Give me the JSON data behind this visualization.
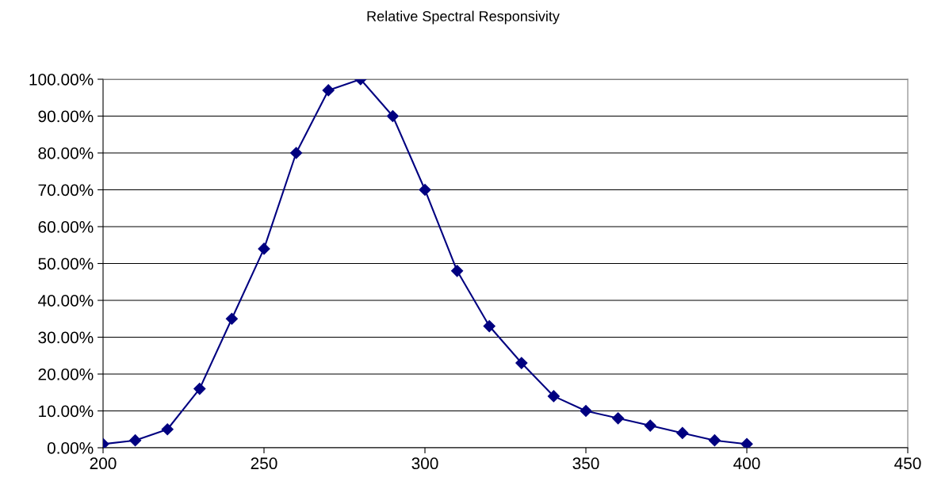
{
  "chart_data": {
    "type": "line",
    "title": "Relative Spectral Responsivity",
    "x": [
      200,
      210,
      220,
      230,
      240,
      250,
      260,
      270,
      280,
      290,
      300,
      310,
      320,
      330,
      340,
      350,
      360,
      370,
      380,
      390,
      400
    ],
    "series": [
      {
        "color": "#000080",
        "values": [
          1,
          2,
          5,
          16,
          35,
          54,
          80,
          97,
          100,
          90,
          70,
          48,
          33,
          23,
          14,
          10,
          8,
          6,
          4,
          2,
          1
        ]
      }
    ],
    "xlim": [
      200,
      450
    ],
    "xticks": [
      200,
      250,
      300,
      350,
      400,
      450
    ],
    "ylim": [
      0,
      100
    ],
    "yticks": [
      {
        "value": 0,
        "label": "0.00%"
      },
      {
        "value": 10,
        "label": "10.00%"
      },
      {
        "value": 20,
        "label": "20.00%"
      },
      {
        "value": 30,
        "label": "30.00%"
      },
      {
        "value": 40,
        "label": "40.00%"
      },
      {
        "value": 50,
        "label": "50.00%"
      },
      {
        "value": 60,
        "label": "60.00%"
      },
      {
        "value": 70,
        "label": "70.00%"
      },
      {
        "value": 80,
        "label": "80.00%"
      },
      {
        "value": 90,
        "label": "90.00%"
      },
      {
        "value": 100,
        "label": "100.00%"
      }
    ],
    "grid": "y",
    "marker": "diamond",
    "line_style": "solid"
  }
}
